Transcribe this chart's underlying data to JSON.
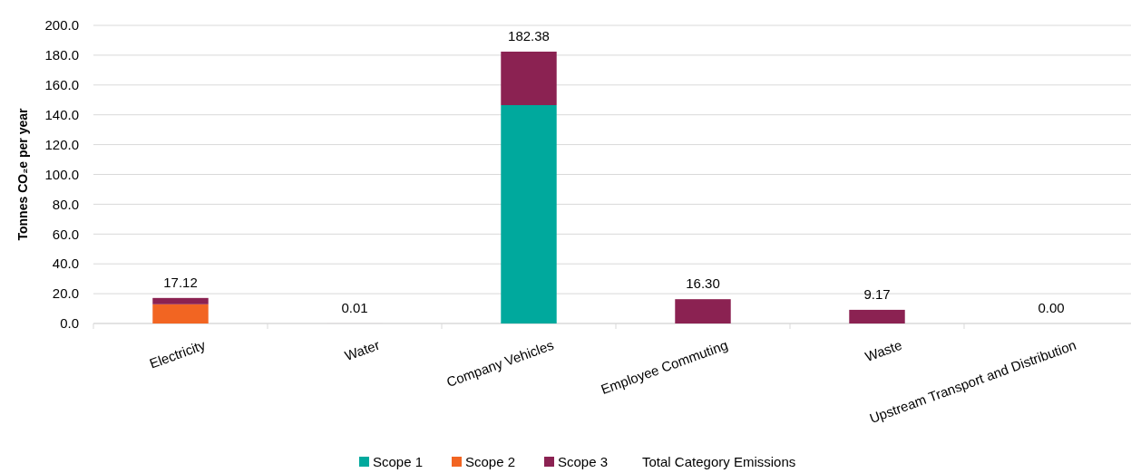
{
  "chart_data": {
    "type": "bar",
    "stacked": true,
    "ylabel": "Tonnes CO₂e per year",
    "categories": [
      "Electricity",
      "Water",
      "Company Vehicles",
      "Employee Commuting",
      "Waste",
      "Upstream Transport and Distribution"
    ],
    "series": [
      {
        "name": "Scope 1",
        "color": "#00a99d",
        "values": [
          0,
          0,
          146.5,
          0,
          0,
          0
        ]
      },
      {
        "name": "Scope 2",
        "color": "#f26522",
        "values": [
          12.9,
          0,
          0,
          0,
          0,
          0
        ]
      },
      {
        "name": "Scope 3",
        "color": "#8b2252",
        "values": [
          4.22,
          0.01,
          35.88,
          16.3,
          9.17,
          0
        ]
      }
    ],
    "totals": [
      "17.12",
      "0.01",
      "182.38",
      "16.30",
      "9.17",
      "0.00"
    ],
    "annotations": [
      "Total Category Emissions"
    ],
    "ylim": [
      0,
      200
    ],
    "yticks": [
      {
        "value": 0,
        "label": "0.0"
      },
      {
        "value": 20,
        "label": "20.0"
      },
      {
        "value": 40,
        "label": "40.0"
      },
      {
        "value": 60,
        "label": "60.0"
      },
      {
        "value": 80,
        "label": "80.0"
      },
      {
        "value": 100,
        "label": "100.0"
      },
      {
        "value": 120,
        "label": "120.0"
      },
      {
        "value": 140,
        "label": "140.0"
      },
      {
        "value": 160,
        "label": "160.0"
      },
      {
        "value": 180,
        "label": "180.0"
      },
      {
        "value": 200,
        "label": "200.0"
      }
    ],
    "grid": "y",
    "legend": "bottom"
  }
}
